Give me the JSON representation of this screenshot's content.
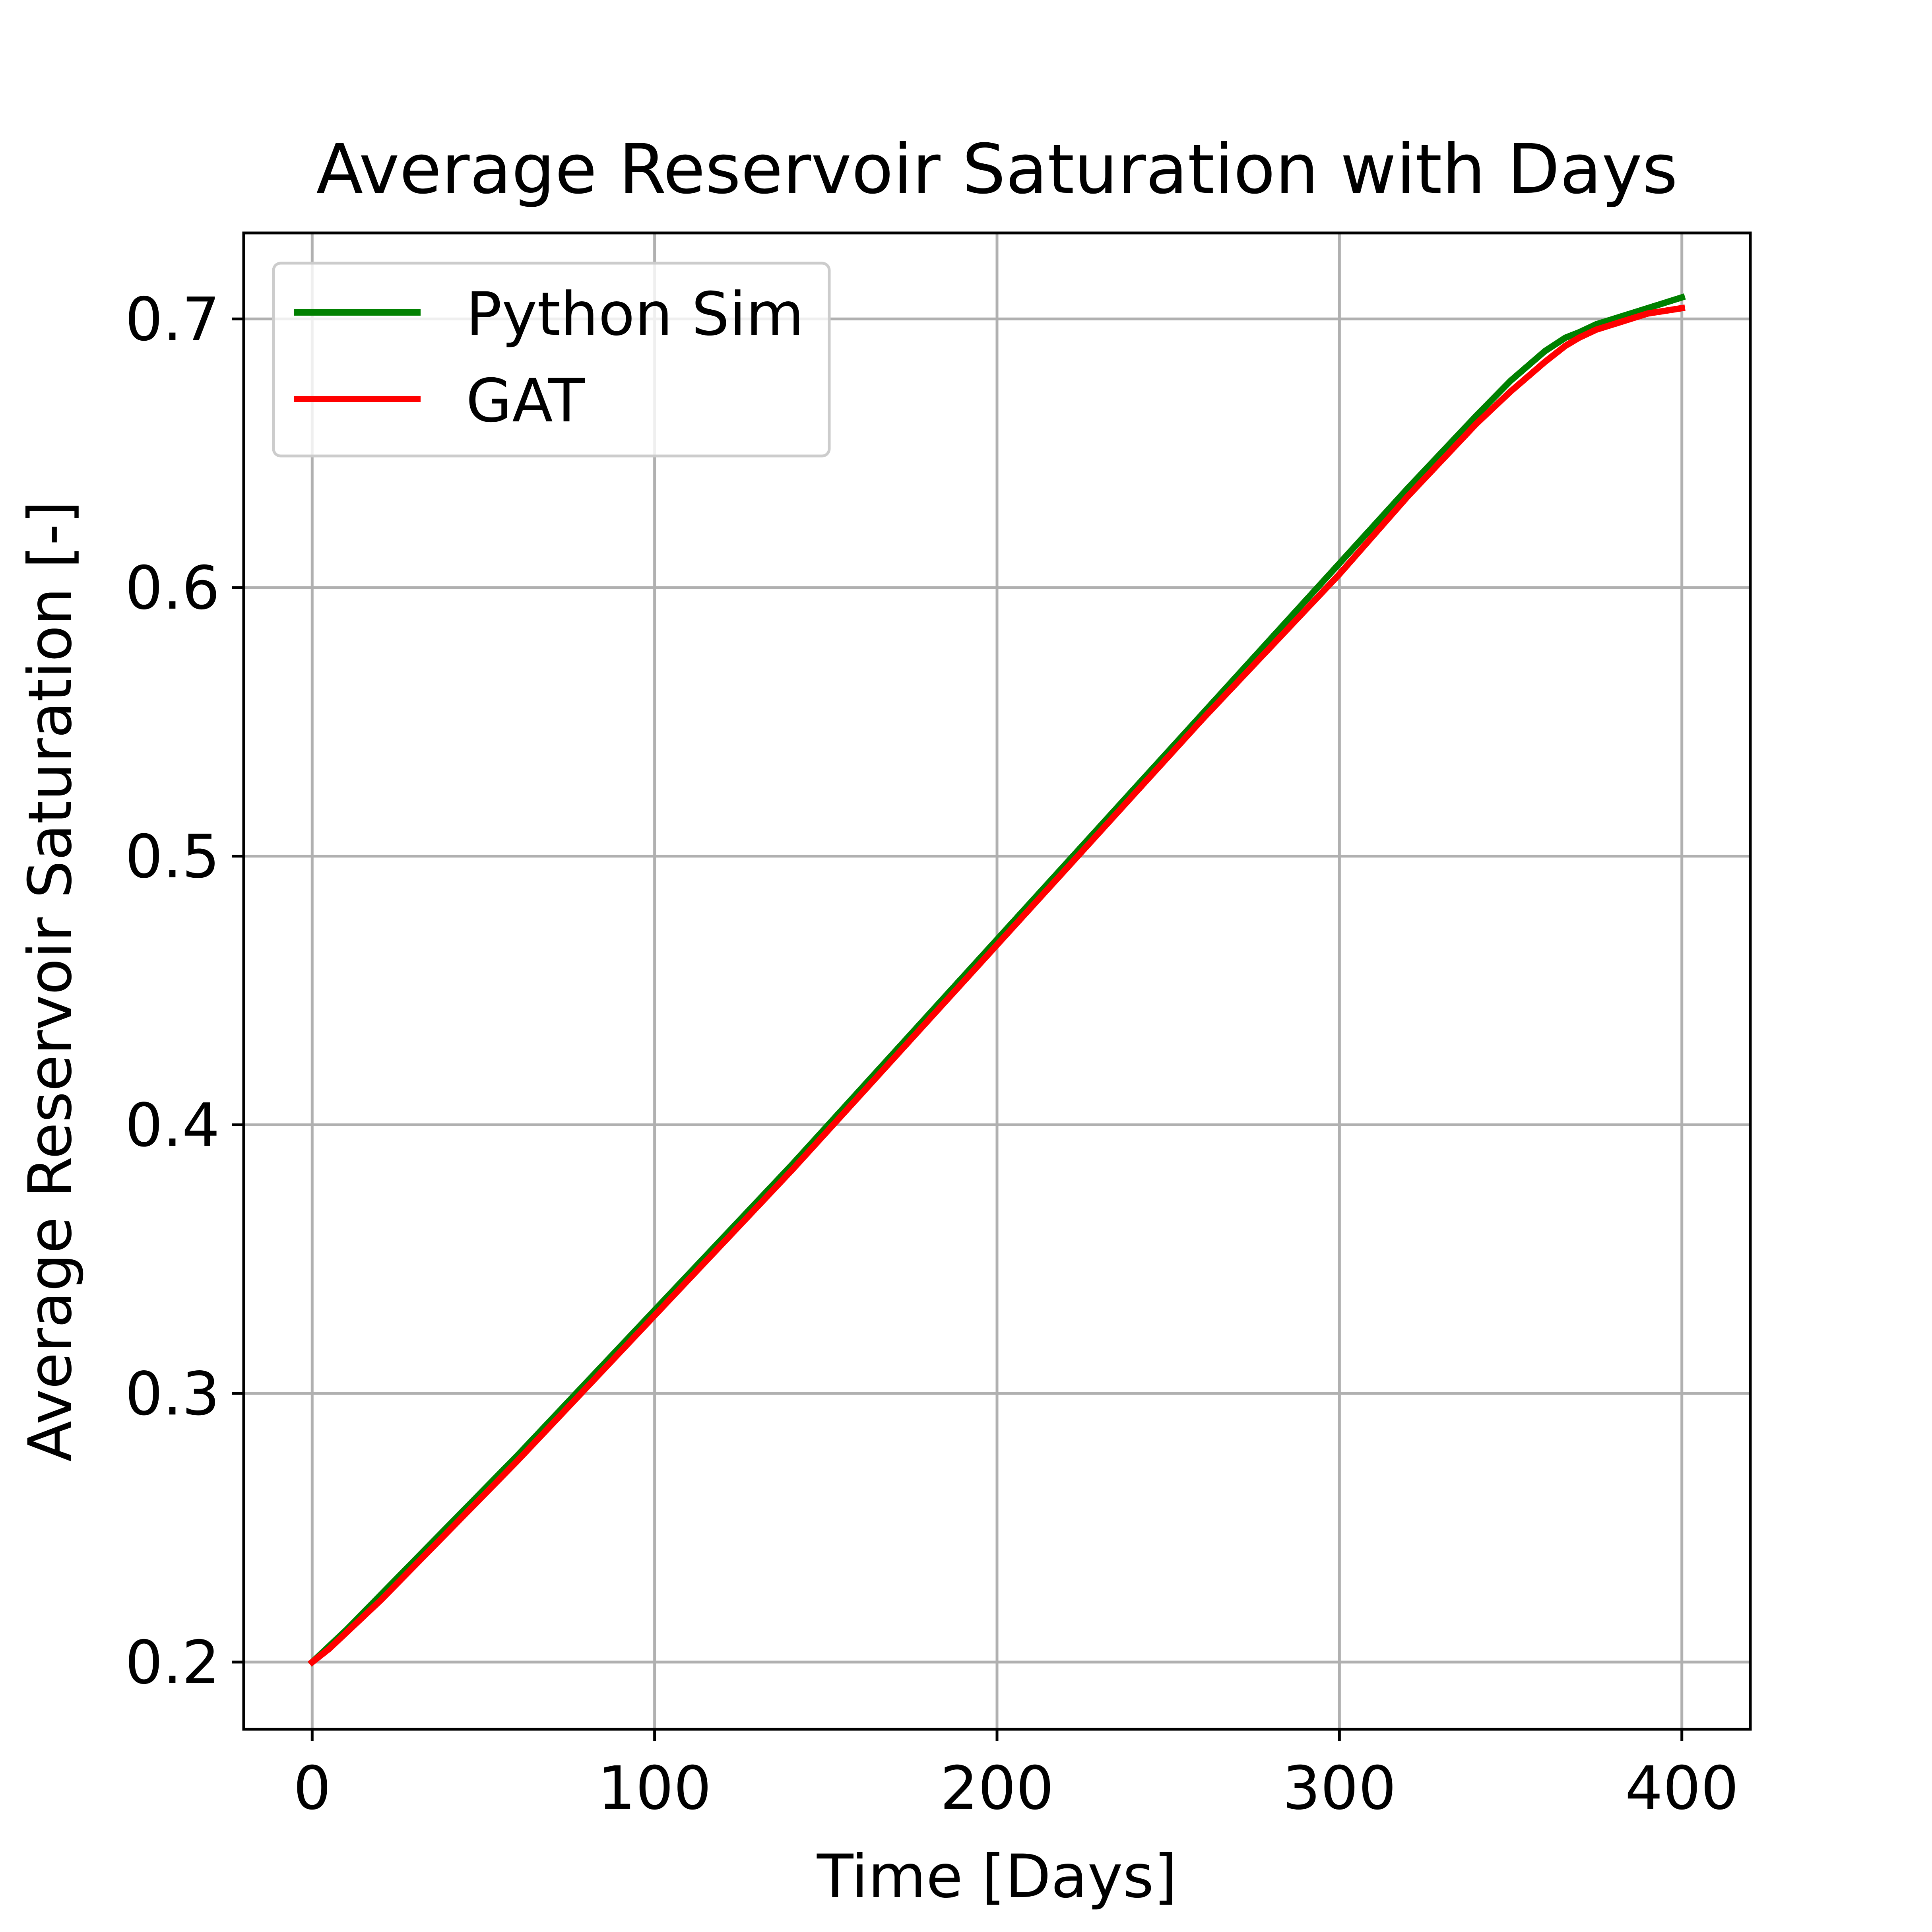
{
  "chart_data": {
    "type": "line",
    "title": "Average Reservoir Saturation with Days",
    "xlabel": "Time [Days]",
    "ylabel": "Average Reservoir Saturation [-]",
    "xlim": [
      -20,
      420
    ],
    "ylim": [
      0.175,
      0.732
    ],
    "xticks": [
      0,
      100,
      200,
      300,
      400
    ],
    "xtick_labels": [
      "0",
      "100",
      "200",
      "300",
      "400"
    ],
    "yticks": [
      0.2,
      0.3,
      0.4,
      0.5,
      0.6,
      0.7
    ],
    "ytick_labels": [
      "0.2",
      "0.3",
      "0.4",
      "0.5",
      "0.6",
      "0.7"
    ],
    "grid": true,
    "legend_position": "top-left",
    "series": [
      {
        "name": "Python Sim",
        "color": "#008000",
        "x": [
          0,
          10,
          20,
          40,
          60,
          80,
          100,
          120,
          140,
          160,
          180,
          200,
          220,
          240,
          260,
          280,
          300,
          320,
          340,
          350,
          360,
          366,
          370,
          375,
          380,
          385,
          390,
          395,
          400
        ],
        "y": [
          0.2,
          0.212,
          0.225,
          0.251,
          0.277,
          0.304,
          0.331,
          0.358,
          0.385,
          0.413,
          0.441,
          0.469,
          0.497,
          0.525,
          0.553,
          0.581,
          0.609,
          0.637,
          0.664,
          0.677,
          0.688,
          0.693,
          0.695,
          0.698,
          0.7,
          0.702,
          0.704,
          0.706,
          0.708
        ]
      },
      {
        "name": "GAT",
        "color": "#ff0000",
        "x": [
          0,
          5,
          10,
          20,
          40,
          60,
          80,
          100,
          120,
          140,
          160,
          180,
          200,
          220,
          240,
          260,
          280,
          300,
          320,
          340,
          350,
          360,
          366,
          370,
          375,
          380,
          385,
          390,
          395,
          400
        ],
        "y": [
          0.2,
          0.205,
          0.211,
          0.223,
          0.249,
          0.275,
          0.302,
          0.329,
          0.356,
          0.383,
          0.411,
          0.439,
          0.467,
          0.495,
          0.523,
          0.551,
          0.578,
          0.605,
          0.634,
          0.661,
          0.673,
          0.684,
          0.69,
          0.693,
          0.696,
          0.698,
          0.7,
          0.702,
          0.703,
          0.704
        ]
      }
    ]
  }
}
